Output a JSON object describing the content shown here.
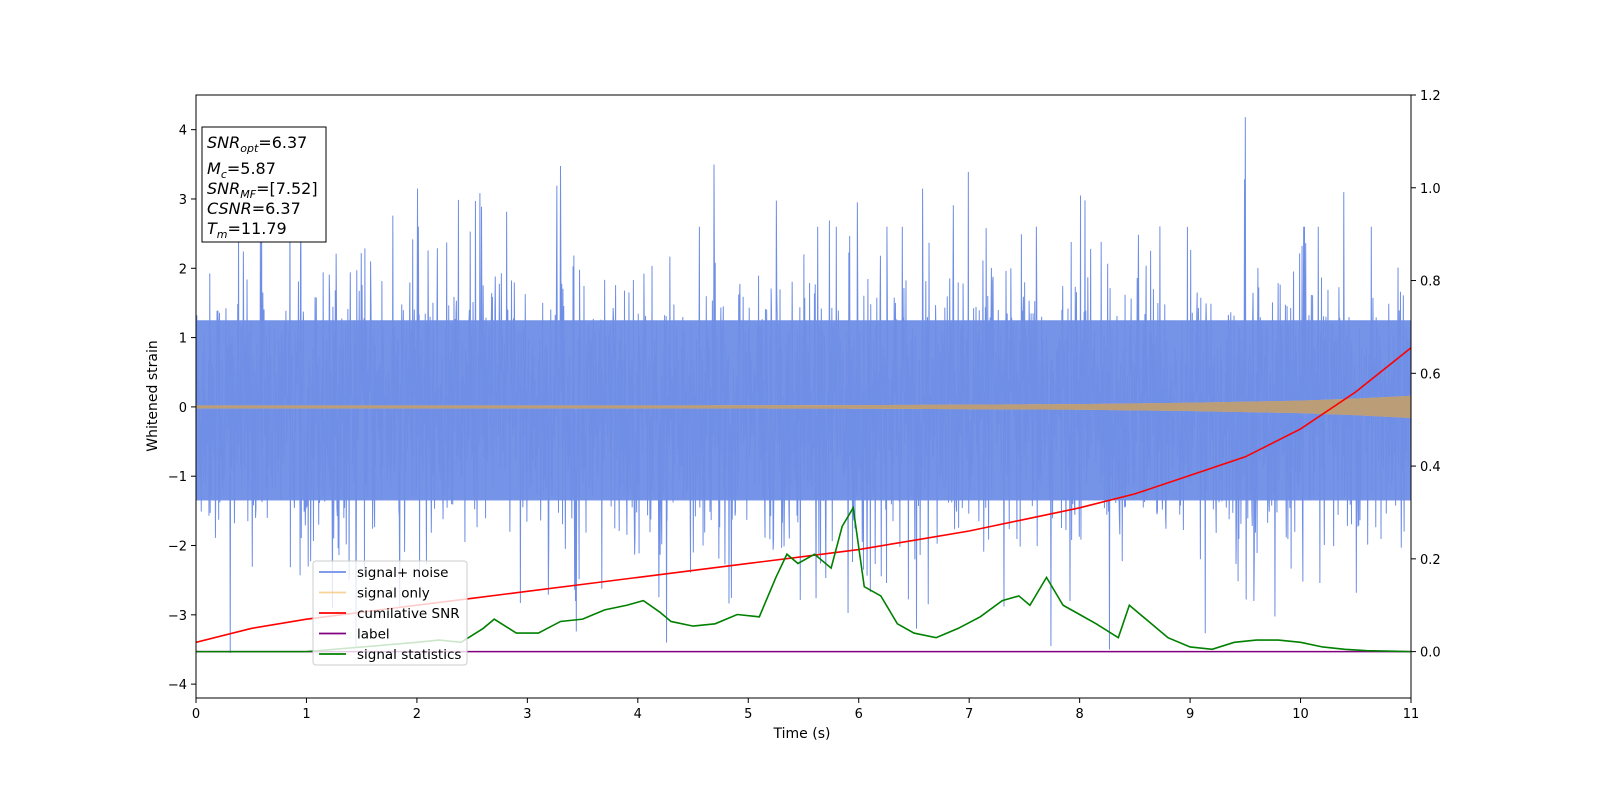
{
  "chart_data": {
    "type": "line",
    "title": "",
    "xlabel": "Time (s)",
    "ylabel": "Whitened strain",
    "y2label": "",
    "xlim": [
      0,
      11
    ],
    "ylim": [
      -4.2,
      4.5
    ],
    "y2lim": [
      -0.1,
      1.2
    ],
    "xticks": [
      "0",
      "1",
      "2",
      "3",
      "4",
      "5",
      "6",
      "7",
      "8",
      "9",
      "10",
      "11"
    ],
    "yticks": [
      "−4",
      "−3",
      "−2",
      "−1",
      "0",
      "1",
      "2",
      "3",
      "4"
    ],
    "y2ticks": [
      "0.0",
      "0.2",
      "0.4",
      "0.6",
      "0.8",
      "1.0",
      "1.2"
    ],
    "grid": false,
    "legend_position": "lower-left",
    "info_box": {
      "snr_opt": {
        "base": "SNR",
        "sub": "opt",
        "value": "=6.37"
      },
      "mc": {
        "base": "M",
        "sub": "c",
        "value": "=5.87"
      },
      "snr_mf": {
        "base": "SNR",
        "sub": "MF",
        "value": "=[7.52]"
      },
      "csnr": {
        "base": "CSNR",
        "sub": "",
        "value": "=6.37"
      },
      "tm": {
        "base": "T",
        "sub": "m",
        "value": "=11.79"
      }
    },
    "series": [
      {
        "name": "signal+ noise",
        "color": "#6f8ee6",
        "axis": "left",
        "description_band": {
          "typical_min": -2.0,
          "typical_max": 2.0,
          "peak_max": 4.18,
          "peak_min": -3.55
        }
      },
      {
        "name": "signal only",
        "color": "#f5c06b",
        "axis": "left",
        "envelope_x": [
          0,
          4,
          6,
          8,
          9,
          10,
          10.5,
          11
        ],
        "envelope_amp": [
          0.02,
          0.02,
          0.025,
          0.04,
          0.06,
          0.09,
          0.12,
          0.16
        ]
      },
      {
        "name": "cumilative SNR",
        "color": "#ff0000",
        "axis": "right",
        "x": [
          0,
          0.5,
          1,
          1.5,
          2,
          2.5,
          3,
          3.5,
          4,
          4.5,
          5,
          5.5,
          6,
          6.5,
          7,
          7.5,
          8,
          8.5,
          9,
          9.5,
          10,
          10.5,
          11
        ],
        "y": [
          0.02,
          0.05,
          0.07,
          0.085,
          0.1,
          0.115,
          0.13,
          0.145,
          0.16,
          0.175,
          0.19,
          0.205,
          0.22,
          0.24,
          0.26,
          0.285,
          0.31,
          0.34,
          0.38,
          0.42,
          0.48,
          0.56,
          0.655
        ]
      },
      {
        "name": "label",
        "color": "#800080",
        "axis": "right",
        "x": [
          0,
          11
        ],
        "y": [
          0.0,
          0.0
        ]
      },
      {
        "name": "signal statistics",
        "color": "#008000",
        "axis": "right",
        "x": [
          0,
          1.0,
          2.0,
          2.2,
          2.4,
          2.6,
          2.7,
          2.9,
          3.1,
          3.3,
          3.5,
          3.7,
          3.9,
          4.05,
          4.2,
          4.3,
          4.5,
          4.7,
          4.9,
          5.1,
          5.25,
          5.35,
          5.45,
          5.6,
          5.75,
          5.85,
          5.95,
          6.05,
          6.2,
          6.35,
          6.5,
          6.7,
          6.9,
          7.1,
          7.3,
          7.45,
          7.55,
          7.7,
          7.85,
          8.0,
          8.15,
          8.35,
          8.45,
          8.6,
          8.8,
          9.0,
          9.2,
          9.4,
          9.6,
          9.8,
          10.0,
          10.2,
          10.4,
          10.6,
          11.0
        ],
        "y": [
          0.0,
          0.0,
          0.02,
          0.025,
          0.02,
          0.05,
          0.07,
          0.04,
          0.04,
          0.065,
          0.07,
          0.09,
          0.1,
          0.11,
          0.085,
          0.065,
          0.055,
          0.06,
          0.08,
          0.075,
          0.16,
          0.21,
          0.19,
          0.21,
          0.18,
          0.27,
          0.31,
          0.14,
          0.12,
          0.06,
          0.04,
          0.03,
          0.05,
          0.075,
          0.11,
          0.12,
          0.1,
          0.16,
          0.1,
          0.08,
          0.06,
          0.03,
          0.1,
          0.07,
          0.03,
          0.01,
          0.005,
          0.02,
          0.025,
          0.025,
          0.02,
          0.01,
          0.005,
          0.002,
          0.0
        ]
      }
    ]
  }
}
